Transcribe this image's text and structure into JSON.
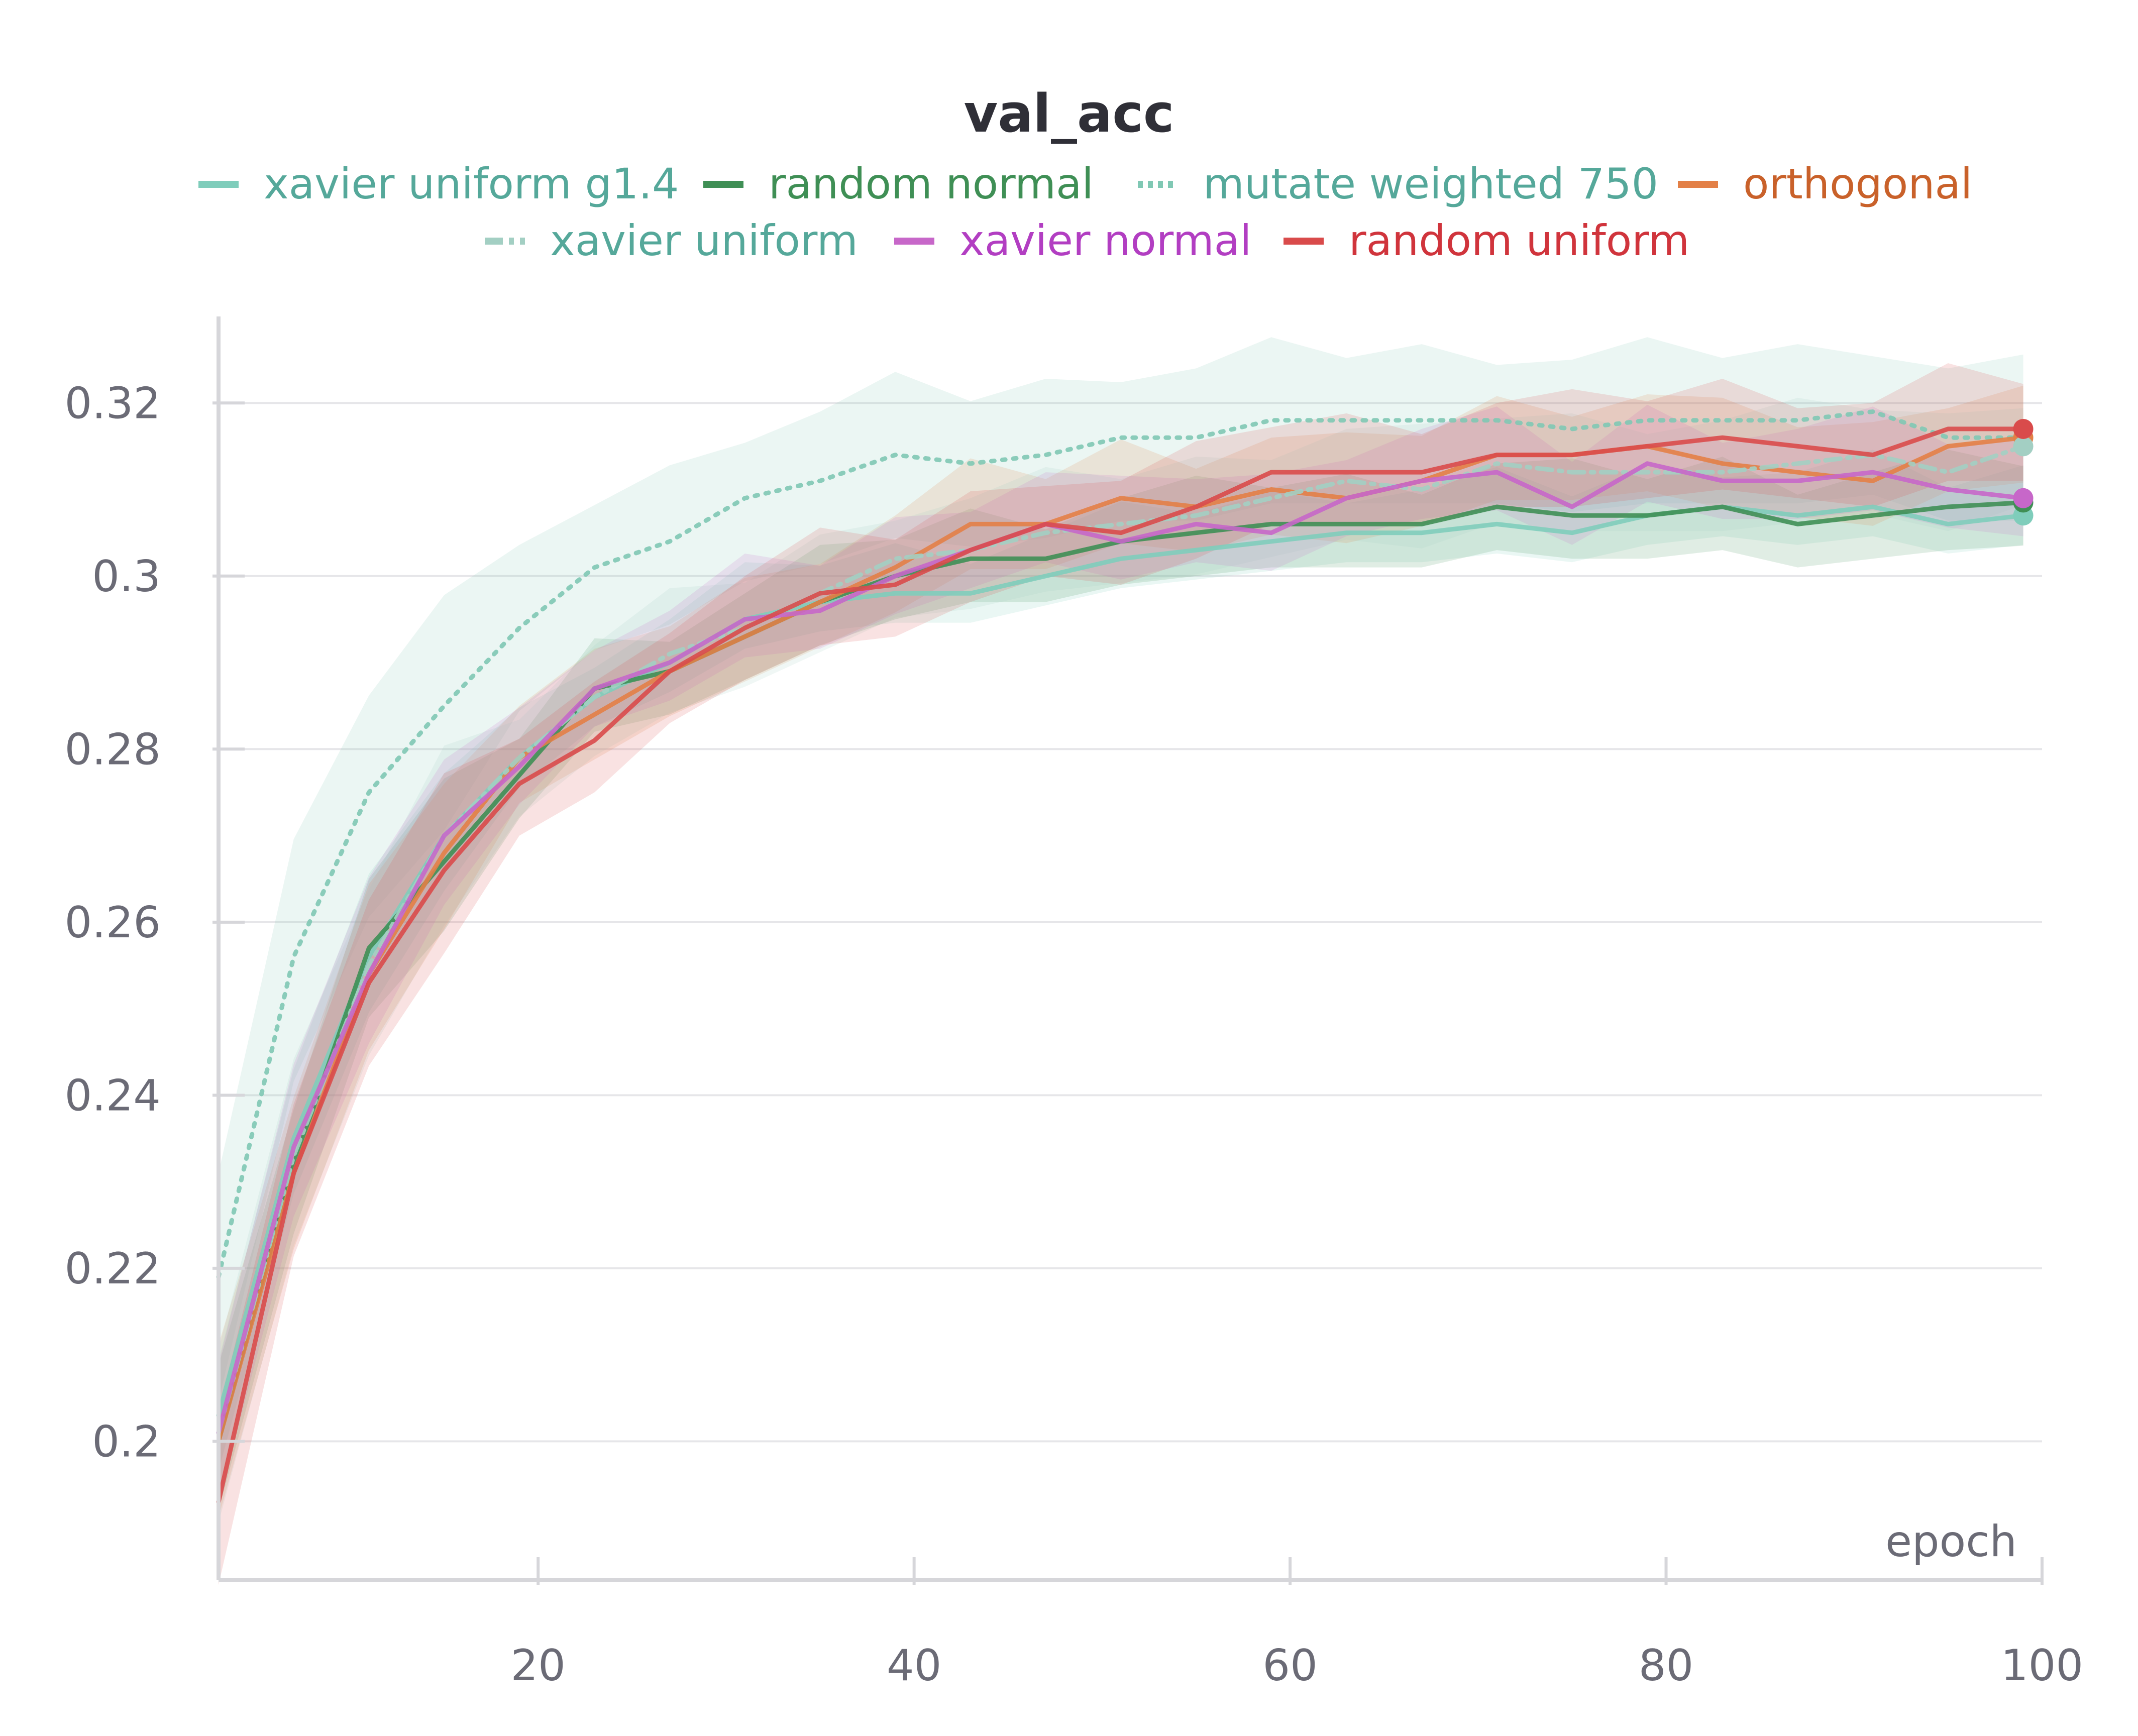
{
  "chart_data": {
    "type": "line",
    "title": "val_acc",
    "xlabel": "epoch",
    "ylabel": "",
    "xlim": [
      3,
      100
    ],
    "ylim": [
      0.184,
      0.33
    ],
    "x_ticks": [
      20,
      40,
      60,
      80,
      100
    ],
    "x_tick_labels": [
      "20",
      "40",
      "60",
      "80",
      "100"
    ],
    "y_ticks": [
      0.2,
      0.22,
      0.24,
      0.26,
      0.28,
      0.3,
      0.32
    ],
    "y_tick_labels": [
      "0.2",
      "0.22",
      "0.24",
      "0.26",
      "0.28",
      "0.3",
      "0.32"
    ],
    "grid": true,
    "legend_position": "top-center",
    "x": [
      3,
      7,
      11,
      15,
      19,
      23,
      27,
      31,
      35,
      39,
      43,
      47,
      51,
      55,
      59,
      63,
      67,
      71,
      75,
      79,
      83,
      87,
      91,
      95,
      99
    ],
    "series": [
      {
        "name": "xavier uniform g1.4",
        "color": "#7fcdbb",
        "text_color": "#55a89a",
        "style": "solid",
        "values": [
          0.203,
          0.235,
          0.256,
          0.27,
          0.279,
          0.286,
          0.29,
          0.295,
          0.297,
          0.298,
          0.298,
          0.3,
          0.302,
          0.303,
          0.304,
          0.305,
          0.305,
          0.306,
          0.305,
          0.307,
          0.308,
          0.307,
          0.308,
          0.306,
          0.307
        ],
        "band": 0.005
      },
      {
        "name": "random normal",
        "color": "#3f8f55",
        "text_color": "#3f8f55",
        "style": "solid",
        "values": [
          0.2,
          0.232,
          0.257,
          0.267,
          0.277,
          0.287,
          0.289,
          0.293,
          0.297,
          0.3,
          0.302,
          0.302,
          0.304,
          0.305,
          0.306,
          0.306,
          0.306,
          0.308,
          0.307,
          0.307,
          0.308,
          0.306,
          0.307,
          0.308,
          0.3085
        ],
        "band": 0.005
      },
      {
        "name": "mutate weighted 750",
        "color": "#80c8b4",
        "text_color": "#55a89a",
        "style": "dotted",
        "values": [
          0.219,
          0.256,
          0.275,
          0.285,
          0.294,
          0.301,
          0.304,
          0.309,
          0.311,
          0.314,
          0.313,
          0.314,
          0.316,
          0.316,
          0.318,
          0.318,
          0.318,
          0.318,
          0.317,
          0.318,
          0.318,
          0.318,
          0.319,
          0.316,
          0.316
        ],
        "band": 0.008
      },
      {
        "name": "orthogonal",
        "color": "#e38047",
        "text_color": "#c9612a",
        "style": "solid",
        "values": [
          0.2,
          0.231,
          0.254,
          0.268,
          0.279,
          0.284,
          0.289,
          0.293,
          0.297,
          0.301,
          0.306,
          0.306,
          0.309,
          0.308,
          0.31,
          0.309,
          0.311,
          0.314,
          0.314,
          0.315,
          0.313,
          0.312,
          0.311,
          0.315,
          0.316
        ],
        "band": 0.006
      },
      {
        "name": "xavier uniform",
        "color": "#a3cfc3",
        "text_color": "#55a89a",
        "style": "dashdot",
        "values": [
          0.201,
          0.233,
          0.255,
          0.27,
          0.279,
          0.286,
          0.291,
          0.294,
          0.298,
          0.302,
          0.303,
          0.305,
          0.306,
          0.307,
          0.309,
          0.311,
          0.31,
          0.313,
          0.312,
          0.312,
          0.312,
          0.313,
          0.314,
          0.312,
          0.315
        ],
        "band": 0.006
      },
      {
        "name": "xavier normal",
        "color": "#c767c9",
        "text_color": "#b23ec2",
        "style": "solid",
        "values": [
          0.201,
          0.234,
          0.254,
          0.27,
          0.278,
          0.287,
          0.29,
          0.295,
          0.296,
          0.3,
          0.303,
          0.306,
          0.304,
          0.306,
          0.305,
          0.309,
          0.311,
          0.312,
          0.308,
          0.313,
          0.311,
          0.311,
          0.312,
          0.31,
          0.309
        ],
        "band": 0.006
      },
      {
        "name": "random uniform",
        "color": "#d94b4b",
        "text_color": "#d0343c",
        "style": "solid",
        "values": [
          0.193,
          0.231,
          0.253,
          0.266,
          0.276,
          0.281,
          0.289,
          0.294,
          0.298,
          0.299,
          0.303,
          0.306,
          0.305,
          0.308,
          0.312,
          0.312,
          0.312,
          0.314,
          0.314,
          0.315,
          0.316,
          0.315,
          0.314,
          0.317,
          0.317
        ],
        "band": 0.006
      }
    ]
  }
}
